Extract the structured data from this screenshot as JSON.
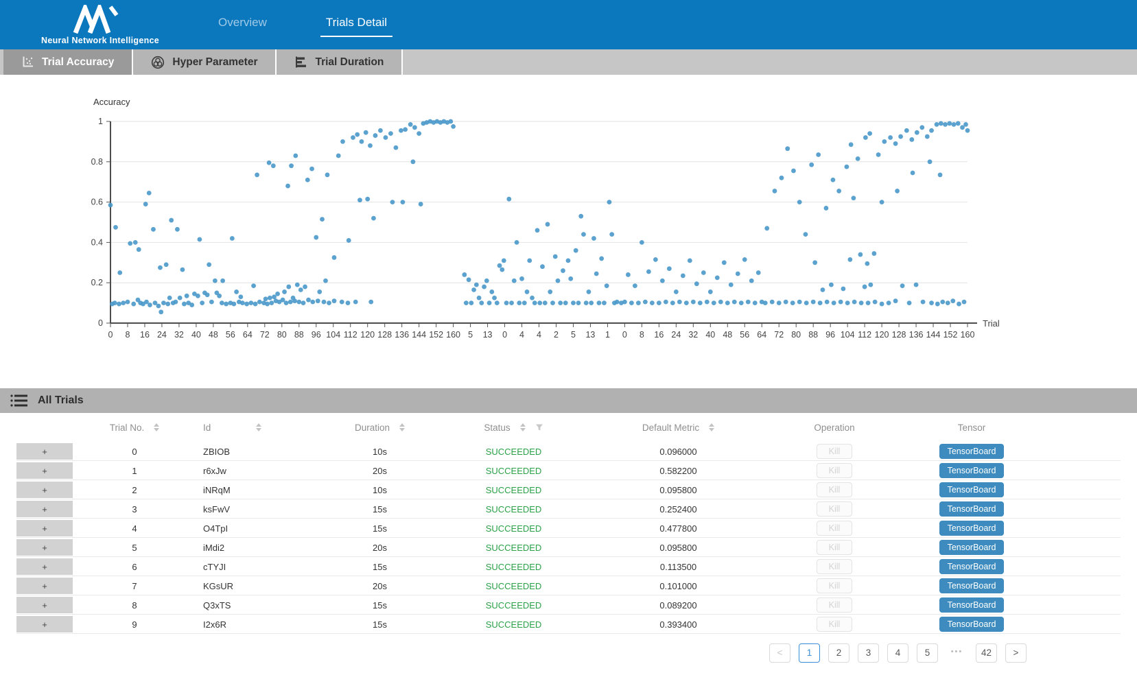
{
  "header": {
    "brand_text": "Neural Network Intelligence",
    "tabs": [
      {
        "label": "Overview",
        "active": false
      },
      {
        "label": "Trials Detail",
        "active": true
      }
    ]
  },
  "subtabs": [
    {
      "label": "Trial Accuracy",
      "icon": "scatter-chart-icon",
      "active": true
    },
    {
      "label": "Hyper Parameter",
      "icon": "wheel-icon",
      "active": false
    },
    {
      "label": "Trial Duration",
      "icon": "horizontal-bars-icon",
      "active": false
    }
  ],
  "chart_data": {
    "type": "scatter",
    "title": "",
    "ylabel": "Accuracy",
    "xlabel": "Trial",
    "ylim": [
      0,
      1
    ],
    "grid": "horizontal gridlines only",
    "legend": "none",
    "point_color": "#4a98ca",
    "yticks": [
      0,
      0.2,
      0.4,
      0.6,
      0.8,
      1
    ],
    "ytick_labels": [
      "0",
      "0.2",
      "0.4",
      "0.6",
      "0.8",
      "1"
    ],
    "x_tick_labels": [
      "0",
      "8",
      "16",
      "24",
      "32",
      "40",
      "48",
      "56",
      "64",
      "72",
      "80",
      "88",
      "96",
      "104",
      "112",
      "120",
      "128",
      "136",
      "144",
      "152",
      "160",
      "5",
      "13",
      "0",
      "4",
      "4",
      "2",
      "5",
      "13",
      "1",
      "0",
      "8",
      "16",
      "24",
      "32",
      "40",
      "48",
      "56",
      "64",
      "72",
      "80",
      "88",
      "96",
      "104",
      "112",
      "120",
      "128",
      "136",
      "144",
      "152",
      "160"
    ],
    "x_unit": "tick-index 0-50 along axis; estimated accuracy values 0-1",
    "points": [
      [
        0.1,
        0.095
      ],
      [
        0.25,
        0.1
      ],
      [
        0.5,
        0.095
      ],
      [
        0.75,
        0.1
      ],
      [
        1.0,
        0.105
      ],
      [
        1.35,
        0.095
      ],
      [
        1.6,
        0.115
      ],
      [
        1.75,
        0.1
      ],
      [
        1.9,
        0.095
      ],
      [
        2.1,
        0.105
      ],
      [
        2.3,
        0.09
      ],
      [
        2.6,
        0.1
      ],
      [
        2.8,
        0.085
      ],
      [
        2.95,
        0.055
      ],
      [
        3.1,
        0.1
      ],
      [
        3.35,
        0.095
      ],
      [
        3.65,
        0.1
      ],
      [
        3.8,
        0.105
      ],
      [
        4.05,
        0.125
      ],
      [
        4.3,
        0.095
      ],
      [
        4.55,
        0.1
      ],
      [
        4.75,
        0.09
      ],
      [
        5.1,
        0.135
      ],
      [
        5.35,
        0.1
      ],
      [
        5.65,
        0.14
      ],
      [
        5.9,
        0.105
      ],
      [
        6.2,
        0.15
      ],
      [
        6.5,
        0.1
      ],
      [
        6.75,
        0.095
      ],
      [
        7.0,
        0.1
      ],
      [
        7.2,
        0.095
      ],
      [
        7.5,
        0.105
      ],
      [
        7.7,
        0.1
      ],
      [
        7.95,
        0.095
      ],
      [
        8.2,
        0.1
      ],
      [
        8.45,
        0.095
      ],
      [
        8.7,
        0.105
      ],
      [
        8.95,
        0.1
      ],
      [
        9.15,
        0.095
      ],
      [
        9.4,
        0.1
      ],
      [
        9.65,
        0.11
      ],
      [
        9.85,
        0.105
      ],
      [
        10.05,
        0.115
      ],
      [
        10.25,
        0.1
      ],
      [
        10.5,
        0.105
      ],
      [
        10.75,
        0.11
      ],
      [
        11.0,
        0.105
      ],
      [
        11.25,
        0.1
      ],
      [
        11.55,
        0.115
      ],
      [
        11.8,
        0.105
      ],
      [
        12.1,
        0.11
      ],
      [
        12.45,
        0.105
      ],
      [
        12.75,
        0.1
      ],
      [
        13.05,
        0.11
      ],
      [
        13.5,
        0.105
      ],
      [
        13.85,
        0.1
      ],
      [
        14.3,
        0.105
      ],
      [
        15.2,
        0.105
      ],
      [
        3.45,
        0.125
      ],
      [
        4.45,
        0.135
      ],
      [
        4.9,
        0.145
      ],
      [
        5.5,
        0.15
      ],
      [
        6.1,
        0.21
      ],
      [
        6.35,
        0.135
      ],
      [
        7.35,
        0.155
      ],
      [
        7.6,
        0.13
      ],
      [
        8.35,
        0.185
      ],
      [
        9.05,
        0.12
      ],
      [
        9.3,
        0.125
      ],
      [
        9.55,
        0.13
      ],
      [
        9.75,
        0.145
      ],
      [
        10.15,
        0.155
      ],
      [
        10.4,
        0.18
      ],
      [
        10.65,
        0.125
      ],
      [
        10.9,
        0.19
      ],
      [
        11.1,
        0.165
      ],
      [
        11.35,
        0.18
      ],
      [
        12.2,
        0.155
      ],
      [
        12.55,
        0.21
      ],
      [
        0.0,
        0.585
      ],
      [
        0.3,
        0.475
      ],
      [
        0.55,
        0.25
      ],
      [
        1.15,
        0.395
      ],
      [
        1.45,
        0.4
      ],
      [
        1.65,
        0.365
      ],
      [
        2.05,
        0.59
      ],
      [
        2.25,
        0.645
      ],
      [
        2.5,
        0.465
      ],
      [
        2.9,
        0.275
      ],
      [
        3.25,
        0.29
      ],
      [
        3.55,
        0.51
      ],
      [
        3.9,
        0.465
      ],
      [
        4.2,
        0.265
      ],
      [
        5.2,
        0.415
      ],
      [
        5.75,
        0.29
      ],
      [
        6.55,
        0.21
      ],
      [
        7.1,
        0.42
      ],
      [
        8.55,
        0.735
      ],
      [
        9.25,
        0.795
      ],
      [
        9.5,
        0.78
      ],
      [
        10.35,
        0.68
      ],
      [
        10.55,
        0.78
      ],
      [
        10.8,
        0.83
      ],
      [
        11.5,
        0.71
      ],
      [
        11.75,
        0.765
      ],
      [
        12.35,
        0.515
      ],
      [
        12.65,
        0.735
      ],
      [
        13.05,
        0.325
      ],
      [
        13.3,
        0.83
      ],
      [
        13.55,
        0.9
      ],
      [
        12.0,
        0.425
      ],
      [
        13.9,
        0.41
      ],
      [
        14.15,
        0.92
      ],
      [
        14.4,
        0.935
      ],
      [
        14.65,
        0.9
      ],
      [
        14.9,
        0.945
      ],
      [
        15.15,
        0.88
      ],
      [
        15.45,
        0.93
      ],
      [
        15.75,
        0.955
      ],
      [
        16.05,
        0.92
      ],
      [
        16.35,
        0.94
      ],
      [
        16.65,
        0.87
      ],
      [
        16.95,
        0.955
      ],
      [
        17.2,
        0.96
      ],
      [
        17.5,
        0.985
      ],
      [
        17.75,
        0.97
      ],
      [
        18.0,
        0.94
      ],
      [
        18.25,
        0.99
      ],
      [
        18.45,
        0.995
      ],
      [
        18.65,
        1.0
      ],
      [
        18.85,
        0.995
      ],
      [
        19.05,
        1.0
      ],
      [
        19.25,
        0.995
      ],
      [
        19.45,
        1.0
      ],
      [
        19.65,
        0.995
      ],
      [
        19.85,
        1.0
      ],
      [
        20.0,
        0.975
      ],
      [
        14.55,
        0.61
      ],
      [
        15.0,
        0.615
      ],
      [
        15.35,
        0.52
      ],
      [
        16.45,
        0.6
      ],
      [
        17.05,
        0.6
      ],
      [
        17.65,
        0.8
      ],
      [
        18.1,
        0.59
      ],
      [
        20.65,
        0.24
      ],
      [
        20.75,
        0.1
      ],
      [
        20.9,
        0.215
      ],
      [
        21.05,
        0.1
      ],
      [
        21.2,
        0.165
      ],
      [
        21.35,
        0.19
      ],
      [
        21.5,
        0.125
      ],
      [
        21.65,
        0.1
      ],
      [
        21.8,
        0.18
      ],
      [
        21.95,
        0.21
      ],
      [
        22.1,
        0.1
      ],
      [
        22.25,
        0.155
      ],
      [
        22.4,
        0.125
      ],
      [
        22.55,
        0.1
      ],
      [
        22.7,
        0.285
      ],
      [
        22.85,
        0.265
      ],
      [
        22.95,
        0.31
      ],
      [
        23.1,
        0.1
      ],
      [
        23.25,
        0.615
      ],
      [
        23.4,
        0.1
      ],
      [
        23.55,
        0.21
      ],
      [
        23.7,
        0.4
      ],
      [
        23.85,
        0.1
      ],
      [
        24.0,
        0.22
      ],
      [
        24.15,
        0.1
      ],
      [
        24.3,
        0.155
      ],
      [
        24.45,
        0.31
      ],
      [
        24.6,
        0.125
      ],
      [
        24.75,
        0.1
      ],
      [
        24.9,
        0.46
      ],
      [
        25.05,
        0.1
      ],
      [
        25.2,
        0.28
      ],
      [
        25.35,
        0.1
      ],
      [
        25.5,
        0.49
      ],
      [
        25.65,
        0.155
      ],
      [
        25.8,
        0.1
      ],
      [
        25.95,
        0.33
      ],
      [
        26.1,
        0.21
      ],
      [
        26.25,
        0.1
      ],
      [
        26.4,
        0.26
      ],
      [
        26.55,
        0.1
      ],
      [
        26.7,
        0.31
      ],
      [
        26.85,
        0.22
      ],
      [
        27.0,
        0.1
      ],
      [
        27.15,
        0.36
      ],
      [
        27.3,
        0.1
      ],
      [
        27.45,
        0.53
      ],
      [
        27.6,
        0.44
      ],
      [
        27.75,
        0.1
      ],
      [
        27.9,
        0.155
      ],
      [
        28.05,
        0.1
      ],
      [
        28.2,
        0.42
      ],
      [
        28.35,
        0.245
      ],
      [
        28.5,
        0.1
      ],
      [
        28.65,
        0.32
      ],
      [
        28.8,
        0.1
      ],
      [
        28.95,
        0.185
      ],
      [
        29.1,
        0.6
      ],
      [
        29.25,
        0.44
      ],
      [
        29.4,
        0.1
      ],
      [
        29.55,
        0.105
      ],
      [
        29.8,
        0.1
      ],
      [
        30.0,
        0.105
      ],
      [
        30.2,
        0.24
      ],
      [
        30.4,
        0.1
      ],
      [
        30.6,
        0.185
      ],
      [
        30.8,
        0.1
      ],
      [
        31.0,
        0.4
      ],
      [
        31.2,
        0.105
      ],
      [
        31.4,
        0.255
      ],
      [
        31.6,
        0.1
      ],
      [
        31.8,
        0.315
      ],
      [
        32.0,
        0.1
      ],
      [
        32.2,
        0.21
      ],
      [
        32.4,
        0.105
      ],
      [
        32.6,
        0.27
      ],
      [
        32.8,
        0.1
      ],
      [
        33.0,
        0.155
      ],
      [
        33.2,
        0.105
      ],
      [
        33.4,
        0.235
      ],
      [
        33.6,
        0.1
      ],
      [
        33.8,
        0.31
      ],
      [
        34.0,
        0.105
      ],
      [
        34.2,
        0.195
      ],
      [
        34.4,
        0.1
      ],
      [
        34.6,
        0.25
      ],
      [
        34.8,
        0.105
      ],
      [
        35.0,
        0.155
      ],
      [
        35.2,
        0.1
      ],
      [
        35.4,
        0.225
      ],
      [
        35.6,
        0.105
      ],
      [
        35.8,
        0.3
      ],
      [
        36.0,
        0.1
      ],
      [
        36.2,
        0.19
      ],
      [
        36.4,
        0.105
      ],
      [
        36.6,
        0.245
      ],
      [
        36.8,
        0.1
      ],
      [
        37.0,
        0.315
      ],
      [
        37.2,
        0.105
      ],
      [
        37.4,
        0.21
      ],
      [
        37.6,
        0.1
      ],
      [
        37.8,
        0.25
      ],
      [
        38.0,
        0.105
      ],
      [
        38.2,
        0.1
      ],
      [
        38.6,
        0.105
      ],
      [
        39.0,
        0.1
      ],
      [
        39.4,
        0.105
      ],
      [
        39.8,
        0.1
      ],
      [
        40.2,
        0.105
      ],
      [
        40.6,
        0.1
      ],
      [
        41.0,
        0.105
      ],
      [
        41.4,
        0.1
      ],
      [
        41.8,
        0.105
      ],
      [
        42.2,
        0.1
      ],
      [
        42.6,
        0.105
      ],
      [
        43.0,
        0.1
      ],
      [
        43.4,
        0.105
      ],
      [
        43.8,
        0.1
      ],
      [
        38.3,
        0.47
      ],
      [
        38.75,
        0.655
      ],
      [
        39.15,
        0.72
      ],
      [
        39.5,
        0.865
      ],
      [
        39.85,
        0.755
      ],
      [
        40.2,
        0.6
      ],
      [
        40.55,
        0.44
      ],
      [
        40.9,
        0.785
      ],
      [
        41.3,
        0.835
      ],
      [
        41.75,
        0.57
      ],
      [
        42.15,
        0.71
      ],
      [
        42.5,
        0.655
      ],
      [
        42.95,
        0.775
      ],
      [
        43.35,
        0.62
      ],
      [
        43.75,
        0.34
      ],
      [
        44.15,
        0.295
      ],
      [
        44.55,
        0.345
      ],
      [
        41.1,
        0.3
      ],
      [
        41.55,
        0.165
      ],
      [
        42.05,
        0.19
      ],
      [
        42.75,
        0.17
      ],
      [
        43.15,
        0.315
      ],
      [
        44.0,
        0.18
      ],
      [
        44.35,
        0.19
      ],
      [
        43.2,
        0.885
      ],
      [
        43.6,
        0.815
      ],
      [
        44.05,
        0.92
      ],
      [
        44.3,
        0.94
      ],
      [
        44.8,
        0.835
      ],
      [
        45.15,
        0.9
      ],
      [
        45.5,
        0.92
      ],
      [
        45.8,
        0.89
      ],
      [
        46.1,
        0.925
      ],
      [
        46.45,
        0.955
      ],
      [
        46.75,
        0.91
      ],
      [
        47.05,
        0.945
      ],
      [
        47.35,
        0.97
      ],
      [
        47.65,
        0.925
      ],
      [
        47.9,
        0.955
      ],
      [
        48.2,
        0.985
      ],
      [
        48.45,
        0.99
      ],
      [
        48.7,
        0.985
      ],
      [
        48.95,
        0.99
      ],
      [
        49.2,
        0.985
      ],
      [
        49.45,
        0.99
      ],
      [
        49.7,
        0.97
      ],
      [
        49.9,
        0.985
      ],
      [
        50.0,
        0.955
      ],
      [
        45.0,
        0.6
      ],
      [
        45.9,
        0.655
      ],
      [
        46.8,
        0.745
      ],
      [
        47.8,
        0.8
      ],
      [
        48.4,
        0.735
      ],
      [
        44.2,
        0.1
      ],
      [
        44.6,
        0.105
      ],
      [
        45.0,
        0.095
      ],
      [
        45.4,
        0.1
      ],
      [
        45.8,
        0.11
      ],
      [
        46.2,
        0.185
      ],
      [
        46.6,
        0.1
      ],
      [
        47.0,
        0.19
      ],
      [
        47.4,
        0.105
      ],
      [
        47.9,
        0.1
      ],
      [
        48.25,
        0.095
      ],
      [
        48.55,
        0.105
      ],
      [
        48.85,
        0.1
      ],
      [
        49.15,
        0.11
      ],
      [
        49.5,
        0.095
      ],
      [
        49.8,
        0.105
      ]
    ]
  },
  "table": {
    "section_title": "All Trials",
    "expander_label": "+",
    "kill_label": "Kill",
    "tensorboard_label": "TensorBoard",
    "columns": [
      {
        "label": "Trial No.",
        "sortable": true
      },
      {
        "label": "Id",
        "sortable": true
      },
      {
        "label": "Duration",
        "sortable": true
      },
      {
        "label": "Status",
        "sortable": true,
        "filterable": true
      },
      {
        "label": "Default Metric",
        "sortable": true
      },
      {
        "label": "Operation",
        "sortable": false
      },
      {
        "label": "Tensor",
        "sortable": false
      }
    ],
    "rows": [
      {
        "no": "0",
        "id": "ZBIOB",
        "duration": "10s",
        "status": "SUCCEEDED",
        "metric": "0.096000"
      },
      {
        "no": "1",
        "id": "r6xJw",
        "duration": "20s",
        "status": "SUCCEEDED",
        "metric": "0.582200"
      },
      {
        "no": "2",
        "id": "iNRqM",
        "duration": "10s",
        "status": "SUCCEEDED",
        "metric": "0.095800"
      },
      {
        "no": "3",
        "id": "ksFwV",
        "duration": "15s",
        "status": "SUCCEEDED",
        "metric": "0.252400"
      },
      {
        "no": "4",
        "id": "O4TpI",
        "duration": "15s",
        "status": "SUCCEEDED",
        "metric": "0.477800"
      },
      {
        "no": "5",
        "id": "iMdi2",
        "duration": "20s",
        "status": "SUCCEEDED",
        "metric": "0.095800"
      },
      {
        "no": "6",
        "id": "cTYJI",
        "duration": "15s",
        "status": "SUCCEEDED",
        "metric": "0.113500"
      },
      {
        "no": "7",
        "id": "KGsUR",
        "duration": "20s",
        "status": "SUCCEEDED",
        "metric": "0.101000"
      },
      {
        "no": "8",
        "id": "Q3xTS",
        "duration": "15s",
        "status": "SUCCEEDED",
        "metric": "0.089200"
      },
      {
        "no": "9",
        "id": "I2x6R",
        "duration": "15s",
        "status": "SUCCEEDED",
        "metric": "0.393400"
      }
    ]
  },
  "pagination": {
    "prev_label": "<",
    "next_label": ">",
    "page_labels": [
      "1",
      "2",
      "3",
      "4",
      "5"
    ],
    "ellipsis": "•••",
    "last_page": "42",
    "active_page": "1"
  },
  "colors": {
    "topbar_blue": "#0b77bd",
    "tensorboard_button_blue": "#3e8cbf",
    "scatter_point_blue": "#4a98ca",
    "succeeded_green": "#2aa147",
    "active_page_blue": "#3b8fd9"
  }
}
